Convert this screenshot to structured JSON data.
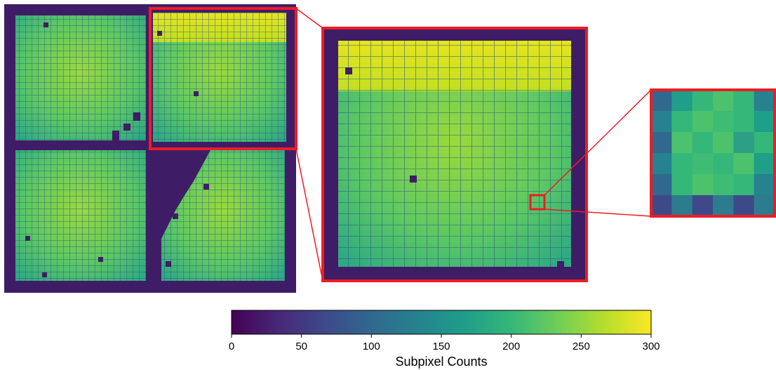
{
  "figure": {
    "panels": [
      {
        "name": "full-detector-map",
        "description_visible": false
      },
      {
        "name": "quadrant-zoom",
        "description_visible": false
      },
      {
        "name": "subpixel-zoom",
        "description_visible": false
      }
    ],
    "highlight_color": "#ee1c24",
    "colormap": "viridis",
    "colormap_stops": [
      "#440154",
      "#482878",
      "#3e4989",
      "#31688e",
      "#26828e",
      "#1f9e89",
      "#35b779",
      "#6ece58",
      "#b5de2b",
      "#fde725"
    ]
  },
  "colorbar": {
    "label": "Subpixel Counts",
    "ticks": [
      "0",
      "50",
      "100",
      "150",
      "200",
      "250",
      "300"
    ],
    "range": [
      0,
      300
    ]
  }
}
